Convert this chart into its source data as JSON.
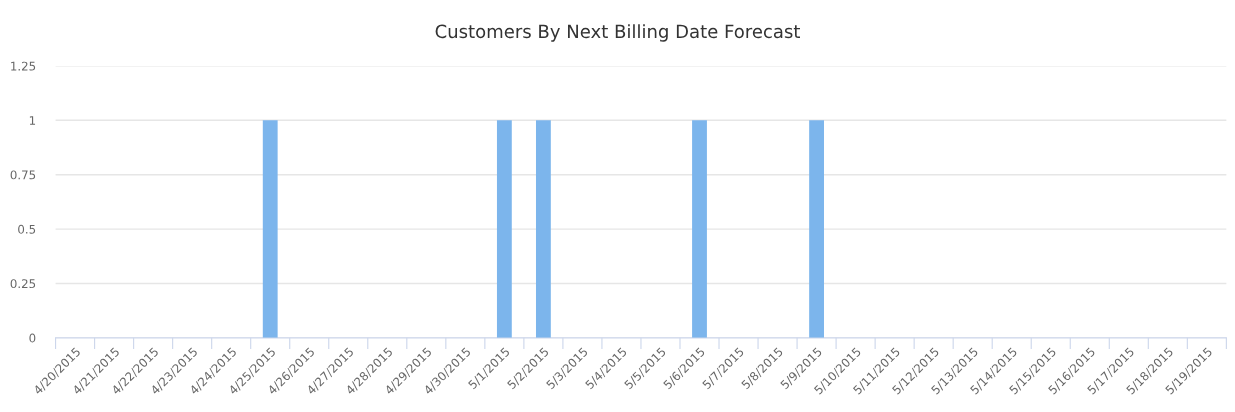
{
  "chart_data": {
    "type": "bar",
    "title": "Customers By Next Billing Date Forecast",
    "categories": [
      "4/20/2015",
      "4/21/2015",
      "4/22/2015",
      "4/23/2015",
      "4/24/2015",
      "4/25/2015",
      "4/26/2015",
      "4/27/2015",
      "4/28/2015",
      "4/29/2015",
      "4/30/2015",
      "5/1/2015",
      "5/2/2015",
      "5/3/2015",
      "5/4/2015",
      "5/5/2015",
      "5/6/2015",
      "5/7/2015",
      "5/8/2015",
      "5/9/2015",
      "5/10/2015",
      "5/11/2015",
      "5/12/2015",
      "5/13/2015",
      "5/14/2015",
      "5/15/2015",
      "5/16/2015",
      "5/17/2015",
      "5/18/2015",
      "5/19/2015"
    ],
    "values": [
      0,
      0,
      0,
      0,
      0,
      1,
      0,
      0,
      0,
      0,
      0,
      1,
      1,
      0,
      0,
      0,
      1,
      0,
      0,
      1,
      0,
      0,
      0,
      0,
      0,
      0,
      0,
      0,
      0,
      0
    ],
    "color": "#7cb5ec",
    "ylim": [
      0,
      1.25
    ],
    "yticks": [
      0,
      0.25,
      0.5,
      0.75,
      1,
      1.25
    ],
    "grid": "y",
    "legend": false
  }
}
